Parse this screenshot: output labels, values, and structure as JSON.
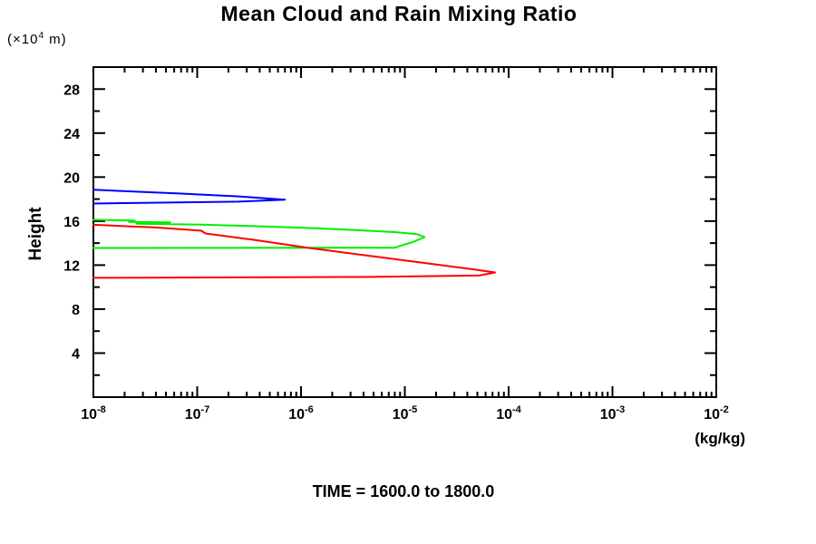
{
  "title": "Mean Cloud and Rain Mixing Ratio",
  "caption": "TIME = 1600.0 to 1800.0",
  "y_axis": {
    "label": "Height",
    "unit": {
      "prefix": "(×10",
      "exp": "4",
      "suffix": " m)"
    },
    "min": 0,
    "max": 30,
    "major_ticks": [
      4,
      8,
      12,
      16,
      20,
      24,
      28
    ],
    "minor_step": 2
  },
  "x_axis": {
    "unit": "(kg/kg)",
    "scale": "log",
    "min_exp": -8,
    "max_exp": -2,
    "major_exponents": [
      -8,
      -7,
      -6,
      -5,
      -4,
      -3,
      -2
    ],
    "base": "10"
  },
  "chart_data": {
    "type": "line",
    "title": "Mean Cloud and Rain Mixing Ratio",
    "xlabel": "(kg/kg)",
    "ylabel": "Height (×10^4 m)",
    "x_scale": "log",
    "xlim": [
      1e-08,
      0.01
    ],
    "ylim": [
      0,
      30
    ],
    "grid": false,
    "legend": "none",
    "note": "Vertical profiles: x = mean mixing ratio (kg/kg), y = height (×10^4 m)",
    "series": [
      {
        "name": "blue-profile-upper-cloud",
        "color": "#0000ff",
        "peak": {
          "x": 7e-07,
          "y": 17.95
        },
        "points": [
          [
            1e-08,
            18.85
          ],
          [
            7e-08,
            18.5
          ],
          [
            2.5e-07,
            18.25
          ],
          [
            7e-07,
            17.95
          ],
          [
            2.5e-07,
            17.77
          ],
          [
            3e-08,
            17.66
          ],
          [
            1e-08,
            17.6
          ]
        ]
      },
      {
        "name": "green-profile-mid-cloud",
        "color": "#00ee00",
        "peak": {
          "x": 1.55e-05,
          "y": 14.55
        },
        "points": [
          [
            1e-08,
            16.12
          ],
          [
            2.5e-08,
            16.05
          ],
          [
            2.2e-08,
            15.92
          ],
          [
            5.5e-08,
            15.88
          ],
          [
            2.6e-08,
            15.76
          ],
          [
            1.1e-07,
            15.68
          ],
          [
            3.2e-07,
            15.55
          ],
          [
            1e-06,
            15.4
          ],
          [
            3.2e-06,
            15.2
          ],
          [
            8e-06,
            15.0
          ],
          [
            1.3e-05,
            14.82
          ],
          [
            1.55e-05,
            14.55
          ],
          [
            1.2e-05,
            14.1
          ],
          [
            9e-06,
            13.75
          ],
          [
            8e-06,
            13.58
          ],
          [
            1e-08,
            13.56
          ]
        ]
      },
      {
        "name": "red-profile-rain",
        "color": "#ff0000",
        "peak": {
          "x": 7.4e-05,
          "y": 11.33
        },
        "points": [
          [
            1e-08,
            15.67
          ],
          [
            4e-08,
            15.42
          ],
          [
            9e-08,
            15.18
          ],
          [
            1.1e-07,
            15.12
          ],
          [
            1.2e-07,
            14.88
          ],
          [
            3.5e-07,
            14.3
          ],
          [
            1.2e-06,
            13.56
          ],
          [
            5.5e-06,
            12.74
          ],
          [
            1.9e-05,
            12.08
          ],
          [
            4.2e-05,
            11.66
          ],
          [
            7.4e-05,
            11.33
          ],
          [
            5.2e-05,
            11.05
          ],
          [
            4e-06,
            10.92
          ],
          [
            1e-08,
            10.85
          ]
        ]
      }
    ]
  }
}
